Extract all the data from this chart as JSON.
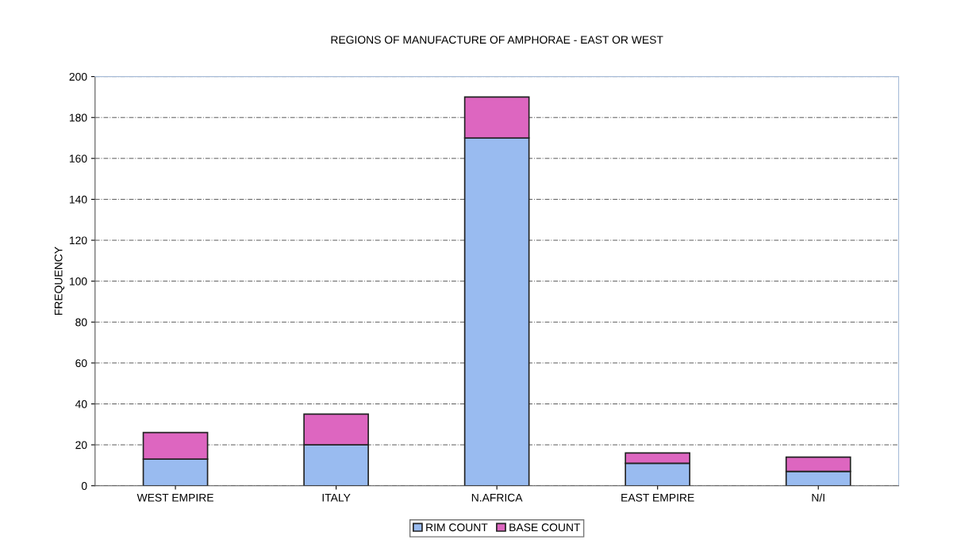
{
  "chart_data": {
    "type": "bar",
    "title": "REGIONS OF MANUFACTURE OF AMPHORAE - EAST OR WEST",
    "ylabel": "FREQUENCY",
    "categories": [
      "WEST EMPIRE",
      "ITALY",
      "N.AFRICA",
      "EAST EMPIRE",
      "N/I"
    ],
    "stacked": true,
    "series": [
      {
        "name": "RIM COUNT",
        "color": "#99bbf0",
        "values": [
          13,
          20,
          170,
          11,
          7
        ]
      },
      {
        "name": "BASE COUNT",
        "color": "#dd66c0",
        "values": [
          13,
          15,
          20,
          5,
          7
        ]
      }
    ],
    "ylim": [
      0,
      200
    ],
    "yticks": [
      0,
      20,
      40,
      60,
      80,
      100,
      120,
      140,
      160,
      180,
      200
    ],
    "grid": "y",
    "legend": "bottom"
  }
}
